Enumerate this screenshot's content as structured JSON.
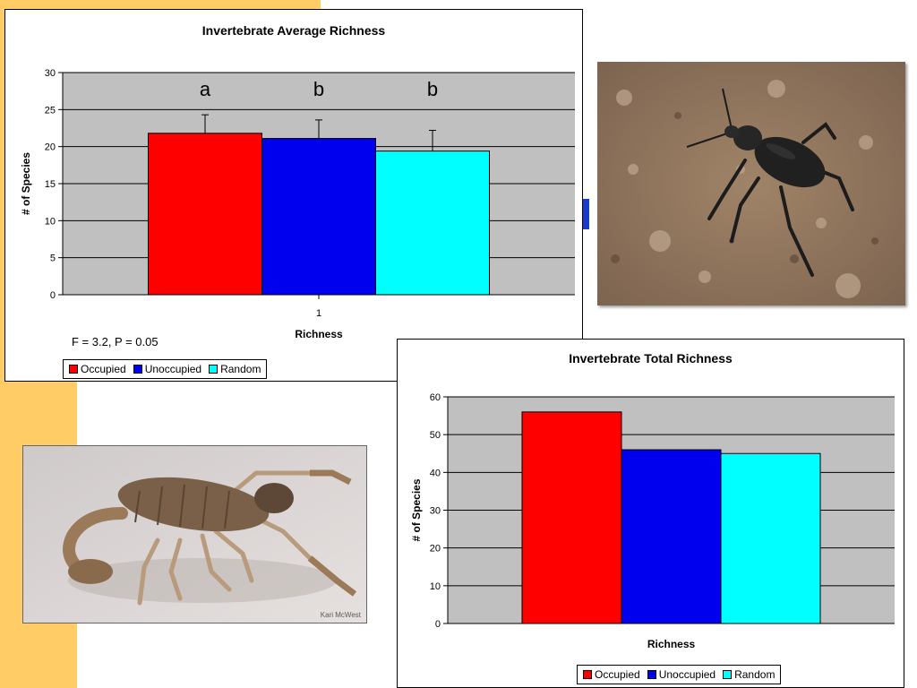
{
  "colors": {
    "occupied": "#ff0000",
    "unoccupied": "#0000ee",
    "random": "#00ffff",
    "plot_area": "#c0c0c0",
    "accent_strip": "#FFCC66"
  },
  "chart_data": [
    {
      "type": "bar",
      "title": "Invertebrate Average Richness",
      "xlabel": "Richness",
      "ylabel": "# of Species",
      "categories": [
        "1"
      ],
      "ylim": [
        0,
        30
      ],
      "yticks": [
        0,
        5,
        10,
        15,
        20,
        25,
        30
      ],
      "grid": true,
      "legend": "bottom-left",
      "series": [
        {
          "name": "Occupied",
          "values": [
            21.8
          ],
          "error": [
            2.5
          ],
          "annotation": "a"
        },
        {
          "name": "Unoccupied",
          "values": [
            21.1
          ],
          "error": [
            2.5
          ],
          "annotation": "b"
        },
        {
          "name": "Random",
          "values": [
            19.4
          ],
          "error": [
            2.8
          ],
          "annotation": "b"
        }
      ],
      "note": "F = 3.2, P = 0.05"
    },
    {
      "type": "bar",
      "title": "Invertebrate Total Richness",
      "xlabel": "Richness",
      "ylabel": "# of Species",
      "categories": [
        ""
      ],
      "ylim": [
        0,
        60
      ],
      "yticks": [
        0,
        10,
        20,
        30,
        40,
        50,
        60
      ],
      "grid": true,
      "legend": "bottom-center",
      "series": [
        {
          "name": "Occupied",
          "values": [
            56
          ]
        },
        {
          "name": "Unoccupied",
          "values": [
            46
          ]
        },
        {
          "name": "Random",
          "values": [
            45
          ]
        }
      ]
    }
  ],
  "photos": {
    "scorpion_credit": "Kari McWest"
  }
}
